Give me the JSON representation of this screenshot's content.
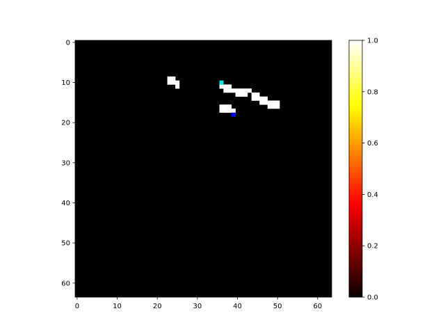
{
  "chart_data": {
    "type": "heatmap",
    "title": "",
    "xlabel": "",
    "ylabel": "",
    "grid_size": [
      64,
      64
    ],
    "xlim": [
      -0.5,
      63.5
    ],
    "ylim": [
      63.5,
      -0.5
    ],
    "x_ticks": [
      0,
      10,
      20,
      30,
      40,
      50,
      60
    ],
    "y_ticks": [
      0,
      10,
      20,
      30,
      40,
      50,
      60
    ],
    "x_tick_labels": [
      "0",
      "10",
      "20",
      "30",
      "40",
      "50",
      "60"
    ],
    "y_tick_labels": [
      "0",
      "10",
      "20",
      "30",
      "40",
      "50",
      "60"
    ],
    "colormap": "hot",
    "background_value": 0.0,
    "colorbar": {
      "range": [
        0.0,
        1.0
      ],
      "ticks": [
        0.0,
        0.2,
        0.4,
        0.6,
        0.8,
        1.0
      ],
      "tick_labels": [
        "0.0",
        "0.2",
        "0.4",
        "0.6",
        "0.8",
        "1.0"
      ],
      "placement": "right"
    },
    "cells": [
      {
        "x": 23,
        "y": 9,
        "value": 1.0
      },
      {
        "x": 24,
        "y": 9,
        "value": 1.0
      },
      {
        "x": 23,
        "y": 10,
        "value": 1.0
      },
      {
        "x": 24,
        "y": 10,
        "value": 1.0
      },
      {
        "x": 25,
        "y": 10,
        "value": 1.0
      },
      {
        "x": 25,
        "y": 11,
        "value": 1.0
      },
      {
        "x": 36,
        "y": 11,
        "value": 1.0
      },
      {
        "x": 37,
        "y": 11,
        "value": 1.0
      },
      {
        "x": 38,
        "y": 11,
        "value": 1.0
      },
      {
        "x": 37,
        "y": 12,
        "value": 1.0
      },
      {
        "x": 38,
        "y": 12,
        "value": 1.0
      },
      {
        "x": 39,
        "y": 12,
        "value": 1.0
      },
      {
        "x": 40,
        "y": 12,
        "value": 1.0
      },
      {
        "x": 41,
        "y": 12,
        "value": 1.0
      },
      {
        "x": 42,
        "y": 12,
        "value": 1.0
      },
      {
        "x": 43,
        "y": 12,
        "value": 1.0
      },
      {
        "x": 40,
        "y": 13,
        "value": 1.0
      },
      {
        "x": 41,
        "y": 13,
        "value": 1.0
      },
      {
        "x": 42,
        "y": 13,
        "value": 1.0
      },
      {
        "x": 44,
        "y": 13,
        "value": 1.0
      },
      {
        "x": 45,
        "y": 13,
        "value": 1.0
      },
      {
        "x": 44,
        "y": 14,
        "value": 1.0
      },
      {
        "x": 45,
        "y": 14,
        "value": 1.0
      },
      {
        "x": 46,
        "y": 14,
        "value": 1.0
      },
      {
        "x": 47,
        "y": 14,
        "value": 1.0
      },
      {
        "x": 46,
        "y": 15,
        "value": 1.0
      },
      {
        "x": 47,
        "y": 15,
        "value": 1.0
      },
      {
        "x": 48,
        "y": 15,
        "value": 1.0
      },
      {
        "x": 49,
        "y": 15,
        "value": 1.0
      },
      {
        "x": 50,
        "y": 15,
        "value": 1.0
      },
      {
        "x": 48,
        "y": 16,
        "value": 1.0
      },
      {
        "x": 49,
        "y": 16,
        "value": 1.0
      },
      {
        "x": 50,
        "y": 16,
        "value": 1.0
      },
      {
        "x": 36,
        "y": 16,
        "value": 1.0
      },
      {
        "x": 37,
        "y": 16,
        "value": 1.0
      },
      {
        "x": 38,
        "y": 16,
        "value": 1.0
      },
      {
        "x": 36,
        "y": 17,
        "value": 1.0
      },
      {
        "x": 37,
        "y": 17,
        "value": 1.0
      },
      {
        "x": 38,
        "y": 17,
        "value": 1.0
      },
      {
        "x": 39,
        "y": 17,
        "value": 1.0
      }
    ],
    "markers": [
      {
        "x": 36,
        "y": 10,
        "color": "#00e5e5"
      },
      {
        "x": 39,
        "y": 18,
        "color": "#0000ff"
      }
    ]
  }
}
